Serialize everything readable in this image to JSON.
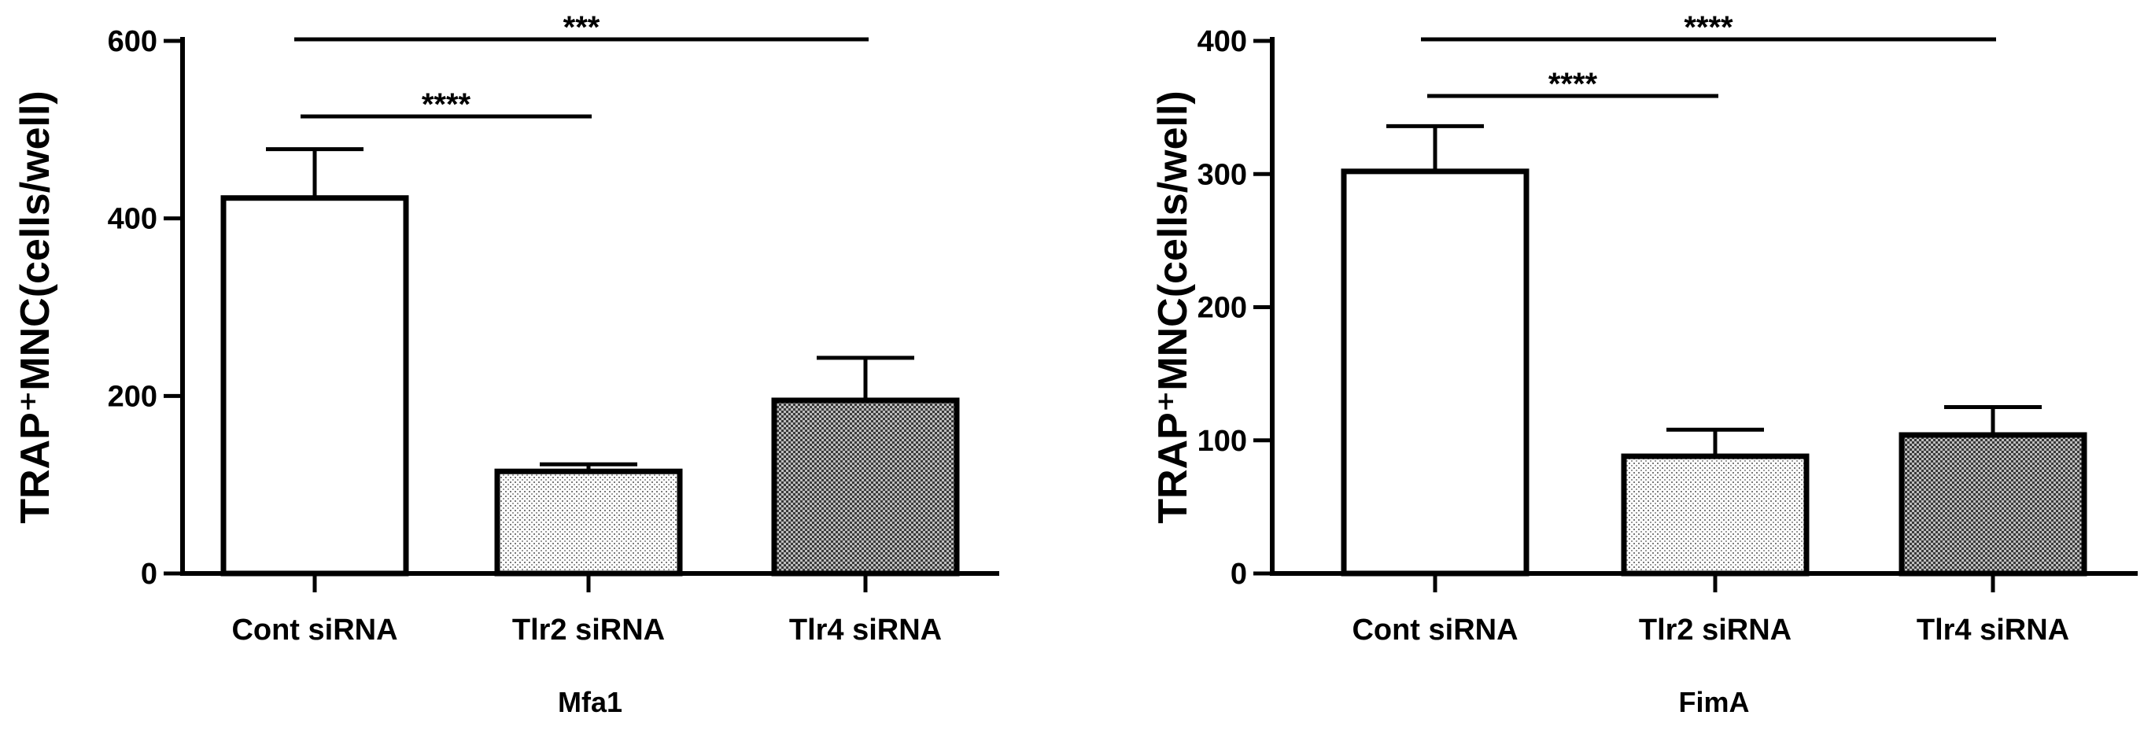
{
  "chart_data": [
    {
      "type": "bar",
      "categories": [
        "Cont siRNA",
        "Tlr2 siRNA",
        "Tlr4 siRNA"
      ],
      "values": [
        423,
        115,
        195
      ],
      "error": [
        55,
        8,
        48
      ],
      "xlabel": "Mfa1",
      "ylabel": "TRAP⁺MNC(cells/well)",
      "ylim": [
        0,
        600
      ],
      "yticks": [
        0,
        200,
        400,
        600
      ],
      "fills": [
        "white",
        "light-dots",
        "dark-crosshatch"
      ],
      "significance": [
        {
          "from": "Cont siRNA",
          "to": "Tlr2 siRNA",
          "label": "****"
        },
        {
          "from": "Cont siRNA",
          "to": "Tlr4 siRNA",
          "label": "***"
        }
      ]
    },
    {
      "type": "bar",
      "categories": [
        "Cont siRNA",
        "Tlr2 siRNA",
        "Tlr4 siRNA"
      ],
      "values": [
        302,
        88,
        104
      ],
      "error": [
        34,
        20,
        21
      ],
      "xlabel": "FimA",
      "ylabel": "TRAP⁺MNC(cells/well)",
      "ylim": [
        0,
        400
      ],
      "yticks": [
        0,
        100,
        200,
        300,
        400
      ],
      "fills": [
        "white",
        "light-dots",
        "dark-crosshatch"
      ],
      "significance": [
        {
          "from": "Cont siRNA",
          "to": "Tlr2 siRNA",
          "label": "****"
        },
        {
          "from": "Cont siRNA",
          "to": "Tlr4 siRNA",
          "label": "****"
        }
      ]
    }
  ]
}
